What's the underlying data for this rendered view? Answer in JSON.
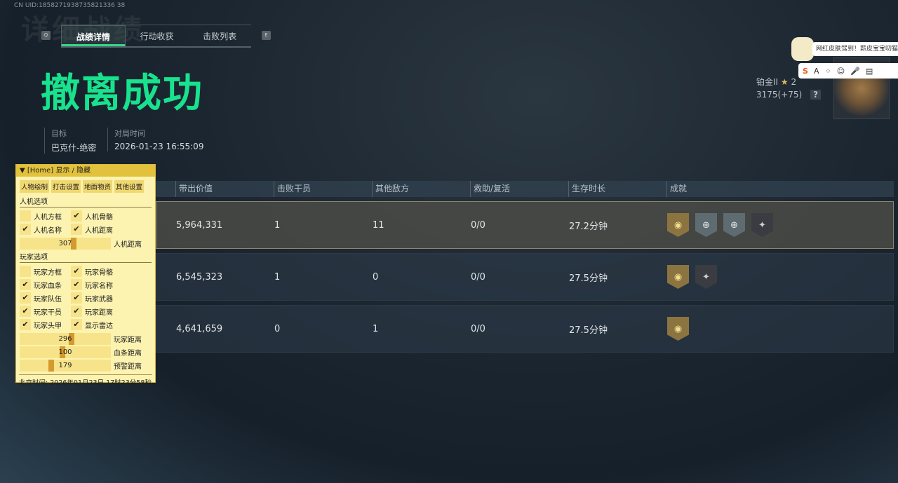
{
  "uid": "CN UID:1858271938735821336 38",
  "bg_title": "详细战绩",
  "keys": {
    "left": "Q",
    "right": "E"
  },
  "tabs": [
    {
      "label": "战绩详情",
      "active": true
    },
    {
      "label": "行动收获"
    },
    {
      "label": "击败列表"
    }
  ],
  "headline": "撤离成功",
  "meta": {
    "target_label": "目标",
    "target_value": "巴克什-绝密",
    "time_label": "对局时间",
    "time_value": "2026-01-23 16:55:09"
  },
  "rank": {
    "tier": "铂金II",
    "stars": "2",
    "score": "3175(+75)",
    "help": "?"
  },
  "chat": {
    "message": "网红皮肤驾到！薪皮宝宝叨猫"
  },
  "ime": {
    "items": [
      "S",
      "A",
      "⁘",
      "☺",
      "🎤",
      "▤"
    ]
  },
  "table": {
    "headers": [
      "带出价值",
      "击败干员",
      "其他敌方",
      "救助/复活",
      "生存时长",
      "成就"
    ],
    "rows": [
      {
        "value": "5,964,331",
        "kills": "1",
        "others": "11",
        "assist": "0/0",
        "time": "27.2分钟",
        "badges": [
          "gold",
          "silver",
          "silver",
          "dark"
        ],
        "highlight": true
      },
      {
        "value": "6,545,323",
        "kills": "1",
        "others": "0",
        "assist": "0/0",
        "time": "27.5分钟",
        "badges": [
          "gold",
          "dark"
        ]
      },
      {
        "value": "4,641,659",
        "kills": "0",
        "others": "1",
        "assist": "0/0",
        "time": "27.5分钟",
        "badges": [
          "gold"
        ]
      }
    ]
  },
  "panel": {
    "title": "▼  [Home] 显示 / 隐藏",
    "tabs": [
      "人物绘制",
      "打击设置",
      "地面物资",
      "其他设置"
    ],
    "ai_section": "人机选项",
    "ai_opts": [
      {
        "label": "人机方框",
        "checked": false
      },
      {
        "label": "人机骨骼",
        "checked": true
      },
      {
        "label": "人机名称",
        "checked": true
      },
      {
        "label": "人机距离",
        "checked": true
      }
    ],
    "ai_slider": {
      "value": "307",
      "label": "人机距离",
      "fraction": 0.6
    },
    "player_section": "玩家选项",
    "player_opts": [
      {
        "label": "玩家方框",
        "checked": false
      },
      {
        "label": "玩家骨骼",
        "checked": true
      },
      {
        "label": "玩家血条",
        "checked": true
      },
      {
        "label": "玩家名称",
        "checked": true
      },
      {
        "label": "玩家队伍",
        "checked": true
      },
      {
        "label": "玩家武器",
        "checked": true
      },
      {
        "label": "玩家干员",
        "checked": true
      },
      {
        "label": "玩家距离",
        "checked": true
      },
      {
        "label": "玩家头甲",
        "checked": true
      },
      {
        "label": "显示雷达",
        "checked": true
      }
    ],
    "player_sliders": [
      {
        "value": "296",
        "label": "玩家距离",
        "fraction": 0.57
      },
      {
        "value": "100",
        "label": "血条距离",
        "fraction": 0.47
      },
      {
        "value": "179",
        "label": "预警距离",
        "fraction": 0.34
      }
    ],
    "footer": "北京时间:  2026年01月23日 17时23分58秒"
  }
}
